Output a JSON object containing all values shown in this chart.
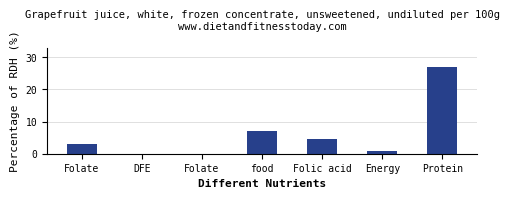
{
  "title": "Grapefruit juice, white, frozen concentrate, unsweetened, undiluted per 100g",
  "subtitle": "www.dietandfitnesstoday.com",
  "categories": [
    "Folate",
    "DFE",
    "Folate",
    "food",
    "Folic acid",
    "Energy",
    "Protein"
  ],
  "values": [
    3.0,
    0.0,
    0.0,
    7.0,
    4.5,
    1.0,
    27.0
  ],
  "bar_color": "#27408B",
  "xlabel": "Different Nutrients",
  "ylabel": "Percentage of RDH (%)",
  "ylim": [
    0,
    33
  ],
  "yticks": [
    0,
    10,
    20,
    30
  ],
  "background_color": "#ffffff",
  "plot_background": "#ffffff",
  "title_fontsize": 7.5,
  "subtitle_fontsize": 7.5,
  "axis_label_fontsize": 8,
  "tick_fontsize": 7
}
